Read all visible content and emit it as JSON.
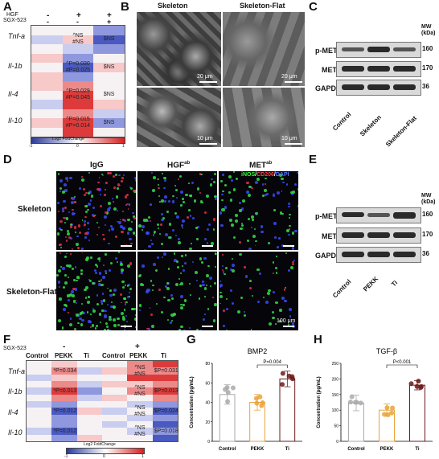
{
  "panels": {
    "A": "A",
    "B": "B",
    "C": "C",
    "D": "D",
    "E": "E",
    "F": "F",
    "G": "G",
    "H": "H"
  },
  "panel_a": {
    "factor1": "HGF",
    "factor2": "SGX-523",
    "col_symbols": [
      "-",
      "+",
      "+"
    ],
    "col_symbols2": [
      "-",
      "-",
      "+"
    ],
    "genes": [
      "Tnf-a",
      "Il-1b",
      "Il-4",
      "Il-10"
    ],
    "stats": [
      [
        "",
        "^NS\n#NS",
        "$NS"
      ],
      [
        "",
        "^P=0.030\n#P=0.025",
        "$NS"
      ],
      [
        "",
        "^P=0.029\n#P=0.045",
        "$NS"
      ],
      [
        "",
        "^P=0.015\n#P=0.014",
        "$NS"
      ]
    ],
    "legend_title": "Log2 FoldChange",
    "legend_min": "-1",
    "legend_mid": "0",
    "legend_max": "1"
  },
  "panel_b": {
    "col1": "Skeleton",
    "col2": "Skeleton-Flat",
    "scale_top": "20 μm",
    "scale_bottom": "10 μm"
  },
  "panel_c": {
    "mw_label": "MW\n(kDa)",
    "rows": [
      "p-MET",
      "MET",
      "GAPDH"
    ],
    "mw": [
      "160",
      "170",
      "36"
    ],
    "lanes": [
      "Control",
      "Skeleton",
      "Skeleton-Flat"
    ]
  },
  "panel_d": {
    "cols": [
      "IgG",
      "HGF",
      "MET"
    ],
    "col_superscript": "ab",
    "rows": [
      "Skeleton",
      "Skeleton-Flat"
    ],
    "legend": [
      "iNOS",
      "CD206",
      "DAPI"
    ],
    "scale": "100 μm"
  },
  "panel_e": {
    "mw_label": "MW\n(kDa)",
    "rows": [
      "p-MET",
      "MET",
      "GAPDH"
    ],
    "mw": [
      "160",
      "170",
      "36"
    ],
    "lanes": [
      "Control",
      "PEKK",
      "Ti"
    ]
  },
  "panel_f": {
    "sgx": "SGX-523",
    "minus": "-",
    "plus": "+",
    "cols": [
      "Control",
      "PEKK",
      "Ti",
      "Control",
      "PEKK",
      "Ti"
    ],
    "genes": [
      "Tnf-a",
      "Il-1b",
      "Il-4",
      "Il-10"
    ],
    "stats": [
      [
        "",
        "*P=0.034",
        "",
        "",
        "^NS\n#NS",
        "$P=0.031"
      ],
      [
        "",
        "*P=0.013",
        "",
        "",
        "^NS\n#NS",
        "$P=0.013"
      ],
      [
        "",
        "*P=0.012",
        "",
        "",
        "^NS\n#NS",
        "$P=0.024"
      ],
      [
        "",
        "*P=0.012",
        "",
        "",
        "^NS\n#NS",
        "$P=0.018"
      ]
    ],
    "legend_title": "Log2 FoldChange",
    "legend_min": "-1",
    "legend_mid": "0",
    "legend_max": "1"
  },
  "chart_data": [
    {
      "type": "bar",
      "title": "BMP2",
      "ylabel": "Concentration (pg/mL)",
      "categories": [
        "Control",
        "PEKK",
        "Ti"
      ],
      "values": [
        48,
        40,
        64
      ],
      "errors": [
        10,
        8,
        8
      ],
      "ylim": [
        0,
        80
      ],
      "yticks": [
        0,
        20,
        40,
        60,
        80
      ],
      "colors": [
        "#aaaaaa",
        "#e8a33a",
        "#6b1a1a"
      ],
      "annotation": "P=0.004"
    },
    {
      "type": "bar",
      "title": "TGF-β",
      "ylabel": "Concentration (pg/mL)",
      "categories": [
        "Control",
        "PEKK",
        "Ti"
      ],
      "values": [
        123,
        100,
        180
      ],
      "errors": [
        25,
        20,
        15
      ],
      "ylim": [
        0,
        250
      ],
      "yticks": [
        0,
        50,
        100,
        150,
        200,
        250
      ],
      "colors": [
        "#aaaaaa",
        "#e8a33a",
        "#6b1a1a"
      ],
      "annotation": "P<0.001"
    }
  ]
}
